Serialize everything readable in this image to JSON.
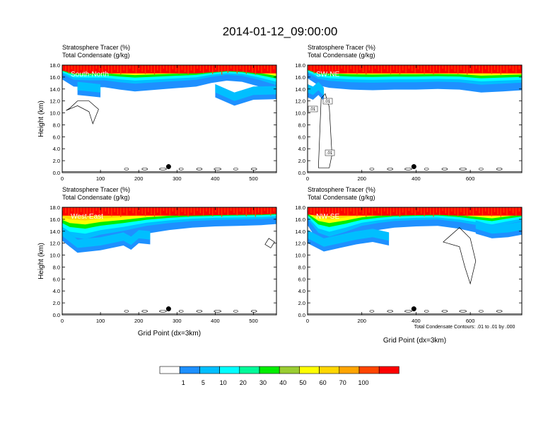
{
  "figure": {
    "title": "2014-01-12_09:00:00",
    "footnote": "Total Condensate Contours: .01 to .01 by .000"
  },
  "colorbar": {
    "colors": [
      "#ffffff",
      "#1e90ff",
      "#00bfff",
      "#00ffff",
      "#00fa9a",
      "#00ee00",
      "#9acd32",
      "#ffff00",
      "#ffd700",
      "#ffa500",
      "#ff4500",
      "#ff0000"
    ],
    "labels": [
      "1",
      "5",
      "10",
      "20",
      "30",
      "40",
      "50",
      "60",
      "70",
      "100"
    ]
  },
  "chart_data": [
    {
      "type": "heatmap",
      "id": "south-north",
      "panel_label": "South-North",
      "title_line1": "Stratosphere Tracer   (%)",
      "title_line2": "Total Condensate   (g/kg)",
      "xlabel": "",
      "ylabel": "Height (km)",
      "xlim": [
        0,
        560
      ],
      "ylim": [
        0,
        18
      ],
      "xticks": [
        "0",
        "100",
        "200",
        "300",
        "400",
        "500"
      ],
      "xtick_values": [
        0,
        100,
        200,
        300,
        400,
        500
      ],
      "yticks": [
        "0.0",
        "2.0",
        "4.0",
        "6.0",
        "8.0",
        "10.0",
        "12.0",
        "14.0",
        "16.0",
        "18.0"
      ],
      "marker": {
        "x": 278,
        "y": 1.0
      },
      "tropopause_profile": [
        {
          "x": 0,
          "y": 16.2
        },
        {
          "x": 30,
          "y": 15.0
        },
        {
          "x": 70,
          "y": 14.9
        },
        {
          "x": 110,
          "y": 14.9
        },
        {
          "x": 150,
          "y": 14.5
        },
        {
          "x": 190,
          "y": 14.2
        },
        {
          "x": 230,
          "y": 14.4
        },
        {
          "x": 270,
          "y": 14.6
        },
        {
          "x": 310,
          "y": 14.8
        },
        {
          "x": 350,
          "y": 15.0
        },
        {
          "x": 390,
          "y": 15.6
        },
        {
          "x": 430,
          "y": 16.0
        },
        {
          "x": 470,
          "y": 15.8
        },
        {
          "x": 510,
          "y": 15.1
        },
        {
          "x": 560,
          "y": 13.9
        }
      ],
      "anvil_profile": [
        {
          "x": 0,
          "y": 0
        },
        {
          "x": 40,
          "y": 13.0
        },
        {
          "x": 100,
          "y": 12.6
        },
        {
          "x": 200,
          "y": 0
        },
        {
          "x": 350,
          "y": 0
        },
        {
          "x": 400,
          "y": 12.6
        },
        {
          "x": 450,
          "y": 11.2
        },
        {
          "x": 500,
          "y": 12.2
        },
        {
          "x": 560,
          "y": 12.3
        }
      ],
      "condensate_contour": [
        {
          "x": 10,
          "y": 10.4
        },
        {
          "x": 40,
          "y": 11.2
        },
        {
          "x": 70,
          "y": 10.2
        },
        {
          "x": 80,
          "y": 8.2
        },
        {
          "x": 95,
          "y": 10.6
        },
        {
          "x": 70,
          "y": 12.0
        },
        {
          "x": 40,
          "y": 12.0
        },
        {
          "x": 20,
          "y": 10.8
        }
      ]
    },
    {
      "type": "heatmap",
      "id": "sw-ne",
      "panel_label": "SW-NE",
      "title_line1": "Stratosphere Tracer   (%)",
      "title_line2": "Total Condensate   (g/kg)",
      "xlabel": "",
      "ylabel": "",
      "xlim": [
        0,
        790
      ],
      "ylim": [
        0,
        18
      ],
      "xticks": [
        "0",
        "200",
        "400",
        "600"
      ],
      "xtick_values": [
        0,
        200,
        400,
        600
      ],
      "yticks": [
        "0.0",
        "2.0",
        "4.0",
        "6.0",
        "8.0",
        "10.0",
        "12.0",
        "14.0",
        "16.0",
        "18.0"
      ],
      "marker": {
        "x": 392,
        "y": 1.0
      },
      "contour_labels": [
        ".01",
        ".01",
        ".01"
      ],
      "tropopause_profile": [
        {
          "x": 0,
          "y": 16.4
        },
        {
          "x": 40,
          "y": 15.2
        },
        {
          "x": 80,
          "y": 14.8
        },
        {
          "x": 160,
          "y": 14.5
        },
        {
          "x": 240,
          "y": 14.4
        },
        {
          "x": 320,
          "y": 14.5
        },
        {
          "x": 400,
          "y": 14.5
        },
        {
          "x": 480,
          "y": 14.6
        },
        {
          "x": 560,
          "y": 14.5
        },
        {
          "x": 640,
          "y": 14.0
        },
        {
          "x": 720,
          "y": 14.2
        },
        {
          "x": 790,
          "y": 14.4
        }
      ],
      "anvil_profile": [
        {
          "x": 0,
          "y": 12.6
        },
        {
          "x": 20,
          "y": 12.2
        },
        {
          "x": 40,
          "y": 13.0
        },
        {
          "x": 60,
          "y": 12.0
        },
        {
          "x": 80,
          "y": 0
        },
        {
          "x": 790,
          "y": 0
        }
      ],
      "condensate_contour": [
        {
          "x": 40,
          "y": 0.8
        },
        {
          "x": 50,
          "y": 12.4
        },
        {
          "x": 65,
          "y": 13.2
        },
        {
          "x": 80,
          "y": 11.0
        },
        {
          "x": 90,
          "y": 3.0
        },
        {
          "x": 80,
          "y": 0.8
        }
      ]
    },
    {
      "type": "heatmap",
      "id": "west-east",
      "panel_label": "West-East",
      "title_line1": "Stratosphere Tracer   (%)",
      "title_line2": "Total Condensate   (g/kg)",
      "xlabel": "Grid Point (dx=3km)",
      "ylabel": "Height (km)",
      "xlim": [
        0,
        560
      ],
      "ylim": [
        0,
        18
      ],
      "xticks": [
        "0",
        "100",
        "200",
        "300",
        "400",
        "500"
      ],
      "xtick_values": [
        0,
        100,
        200,
        300,
        400,
        500
      ],
      "yticks": [
        "0.0",
        "2.0",
        "4.0",
        "6.0",
        "8.0",
        "10.0",
        "12.0",
        "14.0",
        "16.0",
        "18.0"
      ],
      "marker": {
        "x": 278,
        "y": 1.0
      },
      "tropopause_profile": [
        {
          "x": 0,
          "y": 13.2
        },
        {
          "x": 20,
          "y": 12.0
        },
        {
          "x": 60,
          "y": 11.5
        },
        {
          "x": 100,
          "y": 12.4
        },
        {
          "x": 160,
          "y": 13.2
        },
        {
          "x": 220,
          "y": 14.2
        },
        {
          "x": 280,
          "y": 14.8
        },
        {
          "x": 340,
          "y": 15.2
        },
        {
          "x": 400,
          "y": 15.4
        },
        {
          "x": 460,
          "y": 15.5
        },
        {
          "x": 520,
          "y": 15.6
        },
        {
          "x": 560,
          "y": 15.8
        }
      ],
      "anvil_profile": [
        {
          "x": 0,
          "y": 12.4
        },
        {
          "x": 40,
          "y": 10.4
        },
        {
          "x": 100,
          "y": 10.8
        },
        {
          "x": 160,
          "y": 11.6
        },
        {
          "x": 180,
          "y": 10.9
        },
        {
          "x": 200,
          "y": 12.0
        },
        {
          "x": 230,
          "y": 11.8
        },
        {
          "x": 250,
          "y": 0
        },
        {
          "x": 560,
          "y": 0
        }
      ],
      "condensate_contour": [
        {
          "x": 530,
          "y": 11.8
        },
        {
          "x": 540,
          "y": 12.8
        },
        {
          "x": 555,
          "y": 12.2
        },
        {
          "x": 545,
          "y": 11.2
        }
      ]
    },
    {
      "type": "heatmap",
      "id": "nw-se",
      "panel_label": "NW-SE",
      "title_line1": "Stratosphere Tracer   (%)",
      "title_line2": "Total Condensate   (g/kg)",
      "xlabel": "Grid Point (dx=3km)",
      "ylabel": "",
      "xlim": [
        0,
        790
      ],
      "ylim": [
        0,
        18
      ],
      "xticks": [
        "0",
        "200",
        "400",
        "600"
      ],
      "xtick_values": [
        0,
        200,
        400,
        600
      ],
      "yticks": [
        "0.0",
        "2.0",
        "4.0",
        "6.0",
        "8.0",
        "10.0",
        "12.0",
        "14.0",
        "16.0",
        "18.0"
      ],
      "marker": {
        "x": 392,
        "y": 1.0
      },
      "tropopause_profile": [
        {
          "x": 0,
          "y": 15.6
        },
        {
          "x": 40,
          "y": 12.8
        },
        {
          "x": 80,
          "y": 12.0
        },
        {
          "x": 140,
          "y": 13.0
        },
        {
          "x": 200,
          "y": 14.2
        },
        {
          "x": 260,
          "y": 14.8
        },
        {
          "x": 320,
          "y": 15.2
        },
        {
          "x": 400,
          "y": 15.4
        },
        {
          "x": 480,
          "y": 15.5
        },
        {
          "x": 560,
          "y": 15.0
        },
        {
          "x": 620,
          "y": 14.4
        },
        {
          "x": 680,
          "y": 13.8
        },
        {
          "x": 740,
          "y": 14.6
        },
        {
          "x": 790,
          "y": 15.2
        }
      ],
      "anvil_profile": [
        {
          "x": 0,
          "y": 12.0
        },
        {
          "x": 60,
          "y": 10.6
        },
        {
          "x": 120,
          "y": 11.2
        },
        {
          "x": 180,
          "y": 11.8
        },
        {
          "x": 240,
          "y": 12.2
        },
        {
          "x": 300,
          "y": 11.6
        },
        {
          "x": 360,
          "y": 0
        },
        {
          "x": 580,
          "y": 0
        },
        {
          "x": 620,
          "y": 13.6
        },
        {
          "x": 680,
          "y": 12.8
        },
        {
          "x": 740,
          "y": 13.0
        },
        {
          "x": 790,
          "y": 13.4
        }
      ],
      "condensate_contour": [
        {
          "x": 500,
          "y": 12.2
        },
        {
          "x": 560,
          "y": 14.6
        },
        {
          "x": 600,
          "y": 12.8
        },
        {
          "x": 620,
          "y": 9.0
        },
        {
          "x": 600,
          "y": 5.2
        },
        {
          "x": 580,
          "y": 8.0
        },
        {
          "x": 560,
          "y": 11.4
        }
      ]
    }
  ]
}
